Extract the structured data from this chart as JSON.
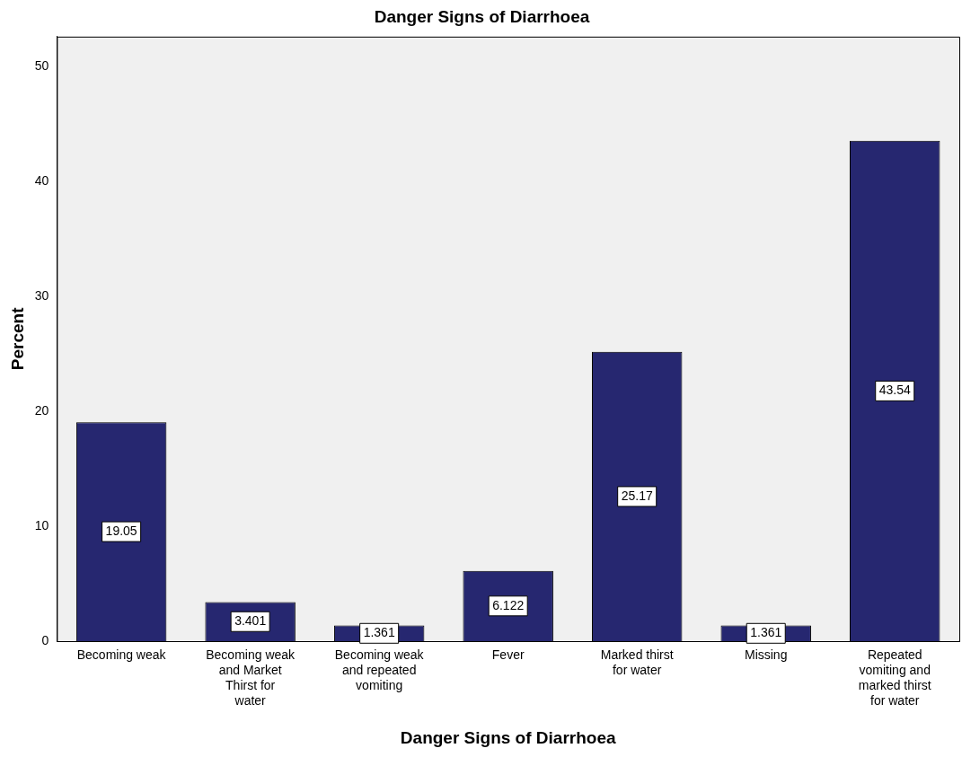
{
  "chart_data": {
    "type": "bar",
    "title": "Danger Signs of Diarrhoea",
    "xlabel": "Danger Signs of Diarrhoea",
    "ylabel": "Percent",
    "categories": [
      "Becoming weak",
      "Becoming weak and Market Thirst for water",
      "Becoming weak and repeated vomiting",
      "Fever",
      "Marked thirst for water",
      "Missing",
      "Repeated vomiting and marked thirst for water"
    ],
    "values": [
      19.05,
      3.401,
      1.361,
      6.122,
      25.17,
      1.361,
      43.54
    ],
    "color": "#262770",
    "ylim": [
      0,
      52.6
    ],
    "yticks": [
      0,
      10,
      20,
      30,
      40,
      50
    ],
    "grid": false,
    "legend": false,
    "data_labels": true
  }
}
